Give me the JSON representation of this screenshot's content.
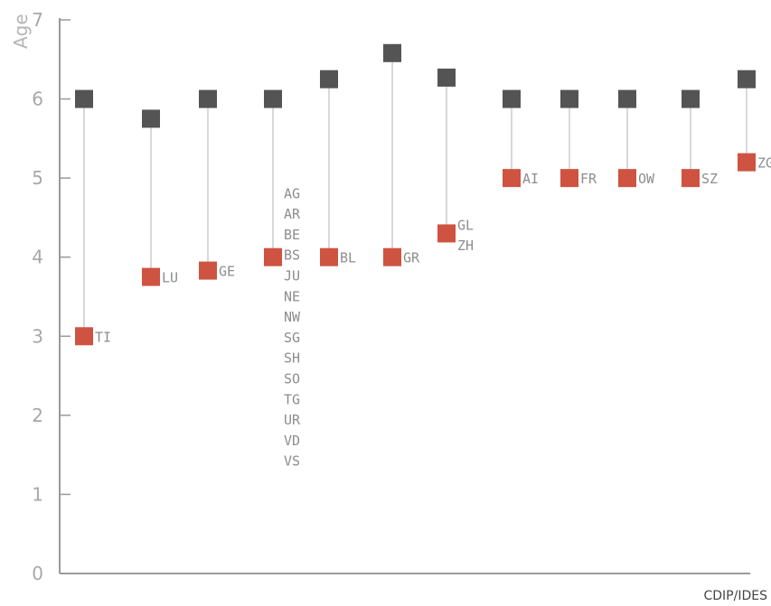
{
  "chart_data": {
    "type": "scatter",
    "title": "",
    "xlabel": "",
    "ylabel": "Age",
    "ylim": [
      0,
      7
    ],
    "yticks": [
      "0",
      "1",
      "2",
      "3",
      "4",
      "5",
      "6",
      "7"
    ],
    "grid": false,
    "legend": "none",
    "source": "CDIP/IDES",
    "colors": {
      "upper": "#545454",
      "lower": "#cf5341",
      "connector": "#cccccc",
      "axis": "#9a9a9a"
    },
    "series": [
      {
        "role": "upper",
        "values": [
          6,
          5.75,
          6,
          6,
          6.25,
          6.58,
          6.27,
          6,
          6,
          6,
          6,
          6.25
        ]
      },
      {
        "role": "lower",
        "values": [
          3,
          3.75,
          3.83,
          4,
          4,
          4,
          4.3,
          5,
          5,
          5,
          5,
          5.2
        ]
      }
    ],
    "points": [
      {
        "upper": 6,
        "lower": 3,
        "labels": [
          "TI"
        ]
      },
      {
        "upper": 5.75,
        "lower": 3.75,
        "labels": [
          "LU"
        ]
      },
      {
        "upper": 6,
        "lower": 3.83,
        "labels": [
          "GE"
        ]
      },
      {
        "upper": 6,
        "lower": 4,
        "labels": [
          "AG",
          "AR",
          "BE",
          "BS",
          "JU",
          "NE",
          "NW",
          "SG",
          "SH",
          "SO",
          "TG",
          "UR",
          "VD",
          "VS"
        ]
      },
      {
        "upper": 6.25,
        "lower": 4,
        "labels": [
          "BL"
        ]
      },
      {
        "upper": 6.58,
        "lower": 4,
        "labels": [
          "GR"
        ]
      },
      {
        "upper": 6.27,
        "lower": 4.3,
        "labels": [
          "GL",
          "ZH"
        ]
      },
      {
        "upper": 6,
        "lower": 5,
        "labels": [
          "AI"
        ]
      },
      {
        "upper": 6,
        "lower": 5,
        "labels": [
          "FR"
        ]
      },
      {
        "upper": 6,
        "lower": 5,
        "labels": [
          "OW"
        ]
      },
      {
        "upper": 6,
        "lower": 5,
        "labels": [
          "SZ"
        ]
      },
      {
        "upper": 6.25,
        "lower": 5.2,
        "labels": [
          "ZG"
        ]
      }
    ]
  }
}
